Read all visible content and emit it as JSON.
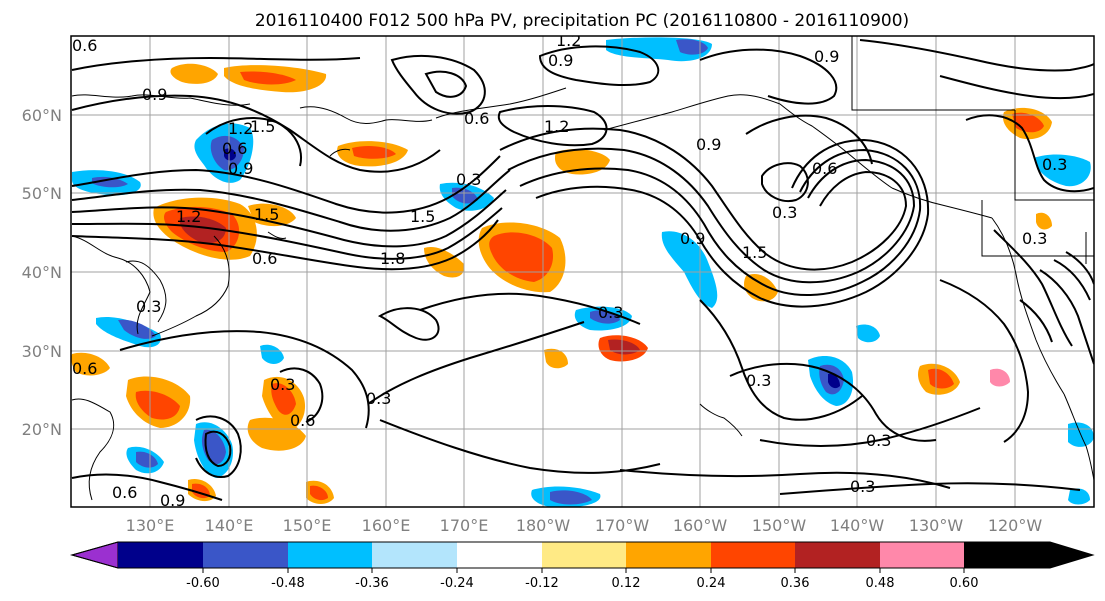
{
  "title": "2016110400 F012 500 hPa PV, precipitation PC (2016110800 - 2016110900)",
  "lat_labels": [
    "60°N",
    "50°N",
    "40°N",
    "30°N",
    "20°N"
  ],
  "lon_labels": [
    "130°E",
    "140°E",
    "150°E",
    "160°E",
    "170°E",
    "180°W",
    "170°W",
    "160°W",
    "150°W",
    "140°W",
    "130°W",
    "120°W"
  ],
  "colorbar": {
    "colors": [
      "#9b30d0",
      "#00008b",
      "#3a56c8",
      "#00bfff",
      "#b3e5fc",
      "#ffffff",
      "#ffea85",
      "#ffa500",
      "#ff4500",
      "#b22222",
      "#ff88aa"
    ],
    "tick_labels": [
      "-0.60",
      "-0.48",
      "-0.36",
      "-0.24",
      "-0.12",
      "0.12",
      "0.24",
      "0.36",
      "0.48",
      "0.60"
    ]
  },
  "contour_labels": [
    "0.6",
    "0.9",
    "1.2",
    "0.9",
    "0.6",
    "1.5",
    "0.6",
    "1.2",
    "1.5",
    "0.3",
    "1.5",
    "1.8",
    "0.6",
    "1.2",
    "0.9",
    "0.6",
    "0.3",
    "1.5",
    "0.9",
    "0.3",
    "0.3",
    "0.6",
    "0.3",
    "0.3",
    "0.3",
    "0.3",
    "0.3",
    "0.6",
    "0.9",
    "0.6",
    "0.9",
    "1.2",
    "0.9",
    "0.3",
    "0.3"
  ]
}
